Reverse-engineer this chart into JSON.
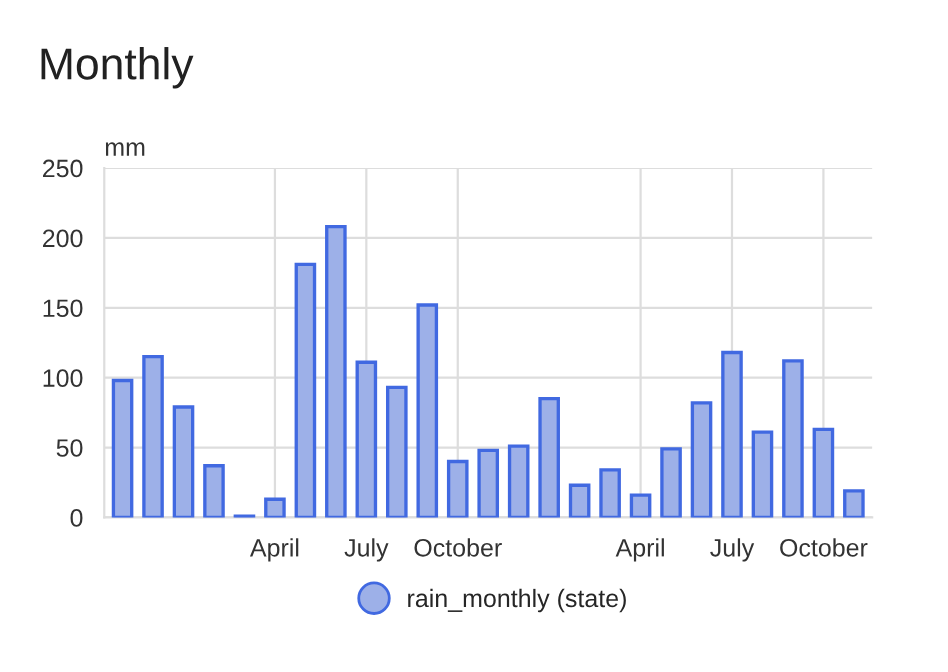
{
  "chart_data": {
    "type": "bar",
    "title": "Monthly",
    "ylabel": "mm",
    "categories": [
      null,
      null,
      null,
      null,
      null,
      "April",
      null,
      null,
      "July",
      null,
      null,
      "October",
      null,
      null,
      null,
      null,
      null,
      "April",
      null,
      null,
      "July",
      null,
      null,
      "October",
      null
    ],
    "series": [
      {
        "name": "rain_monthly (state)",
        "color": "#9db0e8",
        "values": [
          98,
          115,
          79,
          37,
          1,
          13,
          181,
          208,
          111,
          93,
          152,
          40,
          48,
          51,
          85,
          23,
          34,
          16,
          49,
          82,
          118,
          61,
          112,
          63,
          19
        ]
      }
    ],
    "ylim": [
      0,
      250
    ],
    "yticks": [
      0,
      50,
      100,
      150,
      200,
      250
    ],
    "grid": true,
    "legend": "bottom",
    "marker": "circle"
  }
}
